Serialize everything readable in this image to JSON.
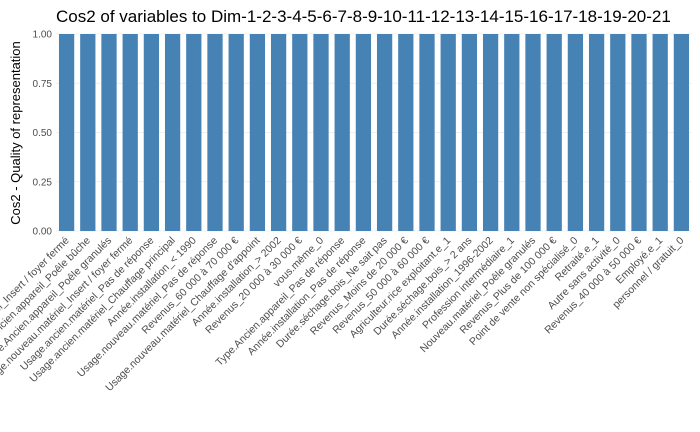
{
  "chart_data": {
    "type": "bar",
    "title": "Cos2 of variables to Dim-1-2-3-4-5-6-7-8-9-10-11-12-13-14-15-16-17-18-19-20-21",
    "xlabel": "",
    "ylabel": "Cos2 - Quality of representation",
    "ylim": [
      0,
      1.0
    ],
    "yticks": [
      "0.00",
      "0.25",
      "0.50",
      "0.75",
      "1.00"
    ],
    "grid": true,
    "bar_color": "#4682B4",
    "categories": [
      "Usage.ancien.matériel_Insert / foyer fermé",
      "Type.Ancien.appareil_Poêle bûche",
      "Type.Ancien.appareil_Poêle granulés",
      "Usage.nouveau.matériel_Insert / foyer fermé",
      "Usage.ancien.matériel_Pas de réponse",
      "Usage.ancien.matériel_Chauffage principal",
      "Année.installation_< 1990",
      "Usage.nouveau.matériel_Pas de réponse",
      "Revenus_60 000 à 70 000 €",
      "Usage.nouveau.matériel_Chauffage d'appoint",
      "Année.installation_> 2002",
      "Revenus_20 000 à 30 000 €",
      "vous.même_0",
      "Type.Ancien.appareil_Pas de réponse",
      "Année.installation_Pas de réponse",
      "Durée.séchage.bois_Ne sait pas",
      "Revenus_Moins de 20 000 €",
      "Revenus_50 000 à 60 000 €",
      "Agriculteur.rice exploitant.e_1",
      "Durée.séchage.bois_> 2 ans",
      "Année.installation_1996-2002",
      "Profession intermédiaire_1",
      "Nouveau.matériel_Poêle granulés",
      "Revenus_Plus de 100 000 €",
      "Point de vente non spécialisé_0",
      "Retraité.e_1",
      "Autre sans activité_0",
      "Revenus_40 000 à 50 000 €",
      "Employé.e_1",
      "personnel / gratuit_0"
    ],
    "values": [
      1.0,
      1.0,
      1.0,
      1.0,
      1.0,
      1.0,
      1.0,
      1.0,
      1.0,
      1.0,
      1.0,
      1.0,
      1.0,
      1.0,
      1.0,
      1.0,
      1.0,
      1.0,
      1.0,
      1.0,
      1.0,
      1.0,
      1.0,
      1.0,
      1.0,
      1.0,
      1.0,
      1.0,
      1.0,
      1.0
    ]
  }
}
